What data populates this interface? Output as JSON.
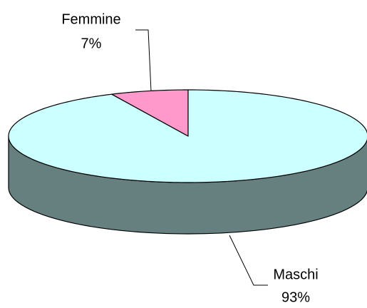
{
  "chart_data": {
    "type": "pie",
    "categories": [
      "Femmine",
      "Maschi"
    ],
    "values": [
      7,
      93
    ],
    "value_labels": [
      "7%",
      "93%"
    ],
    "colors": [
      "#ff99cc",
      "#ccffff"
    ],
    "side_color": "#668080"
  }
}
